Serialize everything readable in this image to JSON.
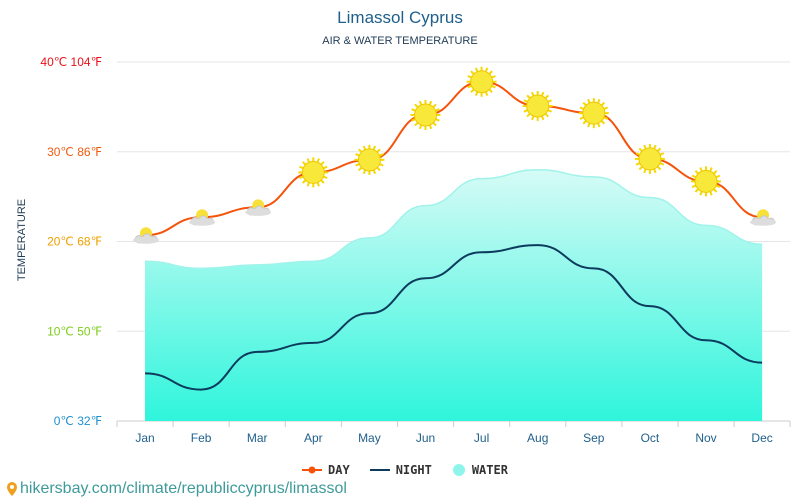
{
  "title": "Limassol Cyprus",
  "subtitle": "AIR & WATER TEMPERATURE",
  "footer": "hikersbay.com/climate/republiccyprus/limassol",
  "chart_data": {
    "type": "line",
    "ylabel": "TEMPERATURE",
    "ylim": [
      0,
      40
    ],
    "grid": true,
    "legend_position": "bottom",
    "yticks": [
      {
        "value": 0,
        "label": "0℃ 32℉",
        "color": "#1e90d0"
      },
      {
        "value": 10,
        "label": "10℃ 50℉",
        "color": "#7ccd1a"
      },
      {
        "value": 20,
        "label": "20℃ 68℉",
        "color": "#f0a000"
      },
      {
        "value": 30,
        "label": "30℃ 86℉",
        "color": "#f05a10"
      },
      {
        "value": 40,
        "label": "40℃ 104℉",
        "color": "#e8101a"
      }
    ],
    "categories": [
      "Jan",
      "Feb",
      "Mar",
      "Apr",
      "May",
      "Jun",
      "Jul",
      "Aug",
      "Sep",
      "Oct",
      "Nov",
      "Dec"
    ],
    "series": [
      {
        "name": "DAY",
        "color": "#f5520a",
        "values": [
          20.7,
          22.7,
          23.8,
          27.7,
          29.1,
          34.1,
          37.8,
          35.1,
          34.3,
          29.2,
          26.7,
          22.7
        ],
        "icons": [
          "partly-cloudy",
          "partly-cloudy",
          "partly-cloudy",
          "sun",
          "sun",
          "sun",
          "sun",
          "sun",
          "sun",
          "sun",
          "sun",
          "partly-cloudy"
        ]
      },
      {
        "name": "NIGHT",
        "color": "#0d3b5e",
        "values": [
          5.3,
          3.5,
          7.7,
          8.7,
          12.0,
          15.9,
          18.8,
          19.6,
          17.0,
          12.8,
          9.0,
          6.5
        ]
      },
      {
        "name": "WATER",
        "color": "#8ff5ec",
        "values": [
          17.8,
          17.0,
          17.4,
          17.8,
          20.4,
          24.0,
          27.0,
          28.0,
          27.2,
          24.9,
          21.8,
          19.7
        ]
      }
    ]
  }
}
